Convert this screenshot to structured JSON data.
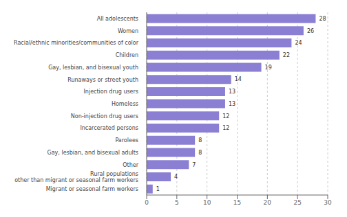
{
  "chart_data": {
    "type": "bar",
    "orientation": "horizontal",
    "categories": [
      "Migrant or seasonal farm workers",
      "Rural populations\nother than migrant or seasonal farm workers",
      "Other",
      "Gay, lesbian, and bisexual adults",
      "Parolees",
      "Incarcerated persons",
      "Non-injection drug users",
      "Homeless",
      "Injection drug users",
      "Runaways or street youth",
      "Gay, lesbian, and bisexual youth",
      "Children",
      "Racial/ethnic minorities/communities of color",
      "Women",
      "All adolescents"
    ],
    "values": [
      1,
      4,
      7,
      8,
      8,
      12,
      12,
      13,
      13,
      14,
      19,
      22,
      24,
      26,
      28
    ],
    "color": "#8B7FD4",
    "xlim": [
      0,
      30
    ],
    "xticks": [
      0,
      5,
      10,
      15,
      20,
      25,
      30
    ],
    "grid": true,
    "data_labels": true
  }
}
